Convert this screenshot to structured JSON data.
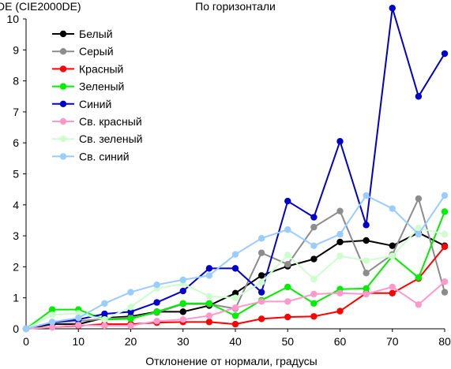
{
  "chart_data": {
    "type": "line",
    "title": "По горизонтали",
    "ylabel": "DE (CIE2000DE)",
    "xlabel": "Отклонение от нормали, градусы",
    "x": [
      0,
      5,
      10,
      15,
      20,
      25,
      30,
      35,
      40,
      45,
      50,
      55,
      60,
      65,
      70,
      75,
      80
    ],
    "xlim": [
      0,
      80
    ],
    "ylim": [
      0,
      10
    ],
    "x_ticks": [
      0,
      10,
      20,
      30,
      40,
      50,
      60,
      70,
      80
    ],
    "y_ticks": [
      0,
      1,
      2,
      3,
      4,
      5,
      6,
      7,
      8,
      9,
      10
    ],
    "grid": false,
    "legend_position": "top-left",
    "series": [
      {
        "name": "Белый",
        "color": "#000000",
        "values": [
          0,
          0.15,
          0.15,
          0.35,
          0.4,
          0.55,
          0.55,
          0.75,
          1.15,
          1.72,
          2.02,
          2.25,
          2.8,
          2.85,
          2.68,
          3.1,
          2.68
        ]
      },
      {
        "name": "Серый",
        "color": "#8c8c8c",
        "values": [
          0,
          0.2,
          0.25,
          0.32,
          0.36,
          0.52,
          0.8,
          0.8,
          0.65,
          2.45,
          2.08,
          3.28,
          3.8,
          1.8,
          2.4,
          4.2,
          1.18
        ]
      },
      {
        "name": "Красный",
        "color": "#ff0000",
        "values": [
          0,
          0.05,
          0.1,
          0.15,
          0.15,
          0.2,
          0.22,
          0.22,
          0.15,
          0.32,
          0.38,
          0.4,
          0.57,
          1.15,
          1.15,
          1.62,
          2.65
        ]
      },
      {
        "name": "Зеленый",
        "color": "#00ee00",
        "values": [
          0,
          0.62,
          0.62,
          0.3,
          0.32,
          0.55,
          0.82,
          0.82,
          0.42,
          0.92,
          1.35,
          0.82,
          1.28,
          1.3,
          2.35,
          1.65,
          3.78
        ]
      },
      {
        "name": "Синий",
        "color": "#0000cc",
        "values": [
          0,
          0.2,
          0.3,
          0.48,
          0.55,
          0.85,
          1.22,
          1.95,
          1.95,
          1.18,
          4.12,
          3.6,
          6.05,
          3.35,
          10.35,
          7.5,
          8.88
        ]
      },
      {
        "name": "Св. красный",
        "color": "#ff99cc",
        "values": [
          0,
          0.05,
          0.12,
          0.1,
          0.1,
          0.25,
          0.3,
          0.42,
          0.68,
          0.88,
          0.88,
          1.12,
          1.15,
          1.12,
          1.35,
          0.78,
          1.52
        ]
      },
      {
        "name": "Св. зеленый",
        "color": "#ccffcc",
        "values": [
          0,
          0.45,
          0.5,
          0.3,
          0.7,
          1.3,
          1.45,
          1.05,
          1.0,
          1.5,
          2.38,
          1.6,
          2.35,
          2.2,
          2.35,
          3.25,
          3.05
        ]
      },
      {
        "name": "Св. синий",
        "color": "#99ccff",
        "values": [
          0,
          0.22,
          0.35,
          0.82,
          1.18,
          1.42,
          1.58,
          1.72,
          2.4,
          2.92,
          3.2,
          2.68,
          3.05,
          4.3,
          3.88,
          3.05,
          4.3
        ]
      }
    ]
  }
}
